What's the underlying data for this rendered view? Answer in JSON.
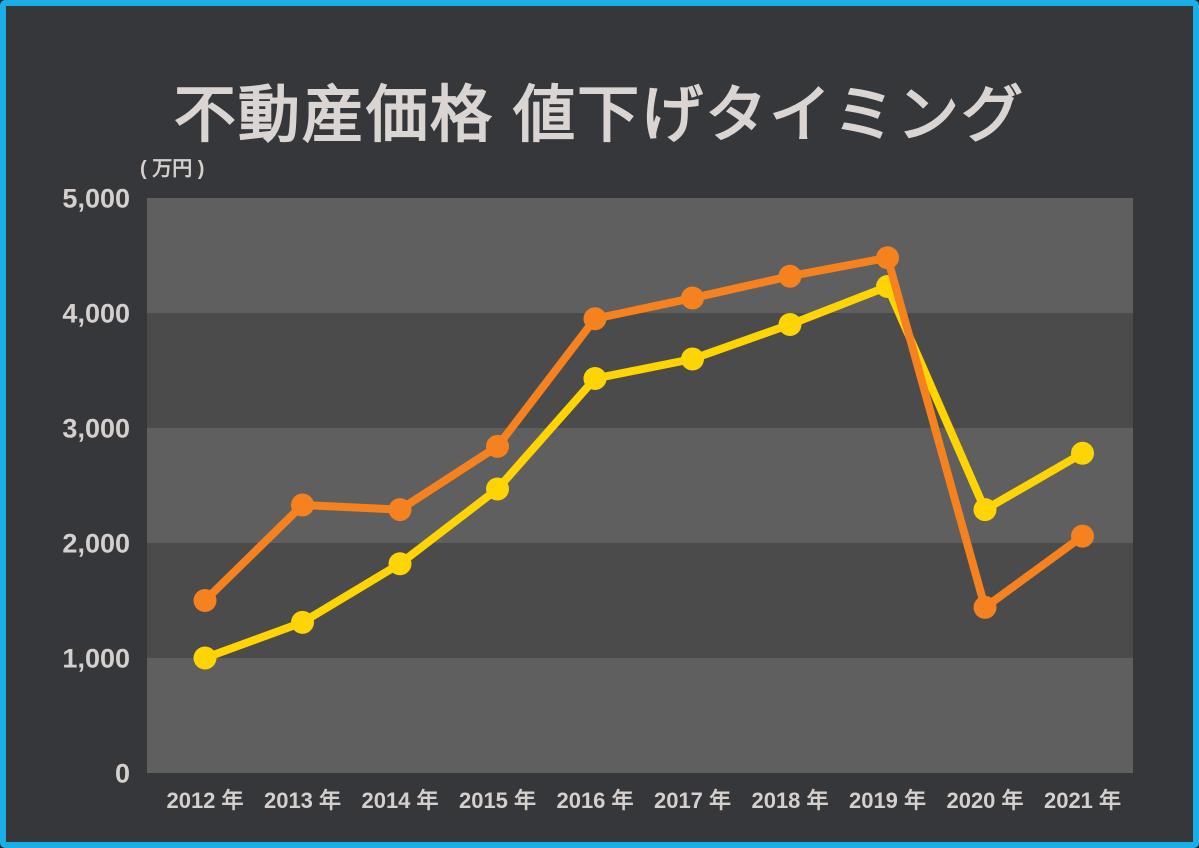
{
  "header": {
    "title": "不動産価格 値下げタイミング",
    "unit_label": "( 万円 )"
  },
  "colors": {
    "frame_border": "#1BADE6",
    "background": "#35373A",
    "band_light": "#5F5F5F",
    "band_dark": "#4B4B4B",
    "series_orange": "#F5821F",
    "series_yellow": "#FFD403",
    "text": "#D5D0CE"
  },
  "chart_data": {
    "type": "line",
    "title": "不動産価格 値下げタイミング",
    "ylabel": "( 万円 )",
    "xlabel": "",
    "categories": [
      "2012 年",
      "2013 年",
      "2014 年",
      "2015 年",
      "2016 年",
      "2017 年",
      "2018 年",
      "2019 年",
      "2020 年",
      "2021 年"
    ],
    "series": [
      {
        "name": "yellow-line",
        "color": "#FFD403",
        "values": [
          1000,
          1310,
          1820,
          2470,
          3430,
          3600,
          3900,
          4230,
          2290,
          2780
        ]
      },
      {
        "name": "orange-line",
        "color": "#F5821F",
        "values": [
          1500,
          2330,
          2290,
          2840,
          3950,
          4130,
          4320,
          4480,
          1440,
          2060
        ]
      }
    ],
    "ylim": [
      0,
      5000
    ],
    "yticks": [
      0,
      1000,
      2000,
      3000,
      4000,
      5000
    ],
    "ytick_labels": [
      "0",
      "1,000",
      "2,000",
      "3,000",
      "4,000",
      "5,000"
    ],
    "grid": "horizontal-bands-alternating",
    "legend": "none",
    "marker": "filled-circle"
  }
}
